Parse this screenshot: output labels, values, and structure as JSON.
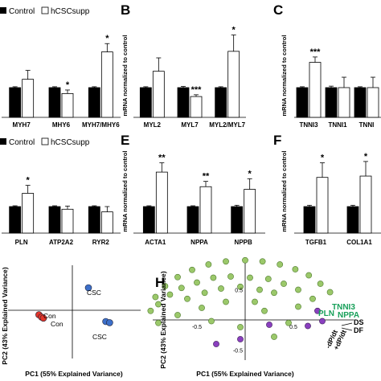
{
  "figure": {
    "background": "#ffffff",
    "accent_green": "#18a05a"
  },
  "legend": {
    "control_label": "Control",
    "treatment_label": "hCSCsupp",
    "control_color": "#000000",
    "treatment_color": "#ffffff"
  },
  "shared_ylabel": "mRNA normalized to control",
  "chart_data": [
    {
      "panel": "",
      "type": "bar",
      "categories": [
        "MYH7",
        "MHY6",
        "MYH7/MHY6"
      ],
      "series": [
        {
          "name": "Control",
          "values": [
            1.0,
            1.0,
            1.0
          ],
          "errors": [
            0.03,
            0.03,
            0.03
          ]
        },
        {
          "name": "hCSCsupp",
          "values": [
            1.28,
            0.8,
            2.2
          ],
          "errors": [
            0.3,
            0.12,
            0.28
          ]
        }
      ],
      "significance": [
        "",
        "*",
        "*"
      ],
      "ylim": [
        0,
        3
      ]
    },
    {
      "panel": "B",
      "type": "bar",
      "categories": [
        "MYL2",
        "MYL7",
        "MYL2/MYL7"
      ],
      "ylabel": "mRNA normalized to control",
      "series": [
        {
          "name": "Control",
          "values": [
            1.0,
            1.0,
            1.0
          ],
          "errors": [
            0.03,
            0.04,
            0.03
          ]
        },
        {
          "name": "hCSCsupp",
          "values": [
            1.55,
            0.7,
            2.22
          ],
          "errors": [
            0.45,
            0.06,
            0.55
          ]
        }
      ],
      "significance": [
        "",
        "***",
        "*"
      ],
      "ylim": [
        0,
        3
      ]
    },
    {
      "panel": "C",
      "type": "bar",
      "categories": [
        "TNNI3",
        "TNNI1",
        "TNNI"
      ],
      "ylabel": "mRNA normalized to control",
      "series": [
        {
          "name": "Control",
          "values": [
            1.0,
            1.0,
            1.0
          ],
          "errors": [
            0.03,
            0.05,
            0.03
          ]
        },
        {
          "name": "hCSCsupp",
          "values": [
            1.85,
            1.0,
            1.0
          ],
          "errors": [
            0.18,
            0.35,
            0.35
          ]
        }
      ],
      "significance": [
        "***",
        "",
        ""
      ],
      "ylim": [
        0,
        3
      ]
    },
    {
      "panel": "",
      "type": "bar",
      "categories": [
        "PLN",
        "ATP2A2",
        "RYR2"
      ],
      "series": [
        {
          "name": "Control",
          "values": [
            1.0,
            1.0,
            1.0
          ],
          "errors": [
            0.03,
            0.03,
            0.03
          ]
        },
        {
          "name": "hCSCsupp",
          "values": [
            1.5,
            0.9,
            0.8
          ],
          "errors": [
            0.3,
            0.12,
            0.2
          ]
        }
      ],
      "significance": [
        "*",
        "",
        ""
      ],
      "ylim": [
        0,
        3
      ]
    },
    {
      "panel": "E",
      "type": "bar",
      "categories": [
        "ACTA1",
        "NPPA",
        "NPPB"
      ],
      "ylabel": "mRNA normalized to control",
      "series": [
        {
          "name": "Control",
          "values": [
            1.0,
            1.0,
            1.0
          ],
          "errors": [
            0.03,
            0.03,
            0.05
          ]
        },
        {
          "name": "hCSCsupp",
          "values": [
            2.3,
            1.75,
            1.65
          ],
          "errors": [
            0.35,
            0.2,
            0.4
          ]
        }
      ],
      "significance": [
        "**",
        "**",
        "*"
      ],
      "ylim": [
        0,
        3
      ]
    },
    {
      "panel": "F",
      "type": "bar",
      "categories": [
        "TGFB1",
        "COL1A1"
      ],
      "ylabel": "mRNA normalized to control",
      "series": [
        {
          "name": "Control",
          "values": [
            1.0,
            1.0
          ],
          "errors": [
            0.05,
            0.05
          ]
        },
        {
          "name": "hCSCsupp",
          "values": [
            2.1,
            2.15
          ],
          "errors": [
            0.55,
            0.55
          ]
        }
      ],
      "significance": [
        "*",
        "*"
      ],
      "ylim": [
        0,
        3
      ]
    },
    {
      "panel": "",
      "type": "scatter",
      "xlabel": "PC1 (55% Explained Variance)",
      "ylabel": "PC2 (43% Explained Variance)",
      "xlim": [
        -1,
        1
      ],
      "ylim": [
        -1,
        1
      ],
      "points": [
        {
          "label": "CSC",
          "x": 0.25,
          "y": 0.4,
          "color": "#3c6fc9"
        },
        {
          "label": "CSC",
          "x": 0.52,
          "y": -0.2,
          "color": "#3c6fc9"
        },
        {
          "label": "",
          "x": 0.58,
          "y": -0.22,
          "color": "#3c6fc9"
        },
        {
          "label": "Con",
          "x": -0.52,
          "y": -0.08,
          "color": "#e3352a"
        },
        {
          "label": "",
          "x": -0.48,
          "y": -0.12,
          "color": "#e3352a"
        },
        {
          "label": "Con",
          "x": -0.45,
          "y": -0.14,
          "color": "#e3352a"
        }
      ],
      "point_labels": [
        "CSC",
        "CSC",
        "Con",
        "Con"
      ]
    },
    {
      "panel": "H",
      "type": "scatter",
      "xlabel": "PC1 (55% Explained Variance)",
      "ylabel": "PC2 (43% Explained Variance)",
      "xlim": [
        -1.1,
        1.1
      ],
      "ylim": [
        -1.1,
        1.1
      ],
      "ticks_x": [
        "-0.5",
        "0.5"
      ],
      "ticks_y": [
        "-0.5",
        "0.5"
      ],
      "green_points": [
        [
          -0.98,
          0.15
        ],
        [
          -0.93,
          0.38
        ],
        [
          -0.83,
          0.56
        ],
        [
          -0.7,
          0.71
        ],
        [
          -0.55,
          0.83
        ],
        [
          -0.38,
          0.92
        ],
        [
          -0.2,
          0.97
        ],
        [
          0.0,
          0.99
        ],
        [
          0.18,
          0.97
        ],
        [
          0.36,
          0.92
        ],
        [
          0.52,
          0.84
        ],
        [
          0.66,
          0.74
        ],
        [
          0.78,
          0.6
        ],
        [
          0.88,
          0.46
        ],
        [
          -0.78,
          0.42
        ],
        [
          -0.66,
          0.53
        ],
        [
          -0.5,
          0.62
        ],
        [
          -0.33,
          0.7
        ],
        [
          -0.15,
          0.72
        ],
        [
          0.05,
          0.7
        ],
        [
          0.24,
          0.68
        ],
        [
          0.4,
          0.6
        ],
        [
          0.55,
          0.5
        ],
        [
          -0.9,
          0.26
        ],
        [
          -0.6,
          0.35
        ],
        [
          -0.42,
          0.45
        ],
        [
          -0.25,
          0.52
        ],
        [
          -0.05,
          0.55
        ],
        [
          0.15,
          0.5
        ],
        [
          0.3,
          0.45
        ],
        [
          0.7,
          0.35
        ],
        [
          -0.7,
          0.08
        ],
        [
          -0.45,
          0.2
        ],
        [
          -0.2,
          0.3
        ],
        [
          0.1,
          0.3
        ],
        [
          0.55,
          0.22
        ],
        [
          0.2,
          0.15
        ],
        [
          -0.9,
          -0.05
        ],
        [
          0.45,
          -0.05
        ],
        [
          -0.05,
          -0.12
        ],
        [
          0.3,
          -0.28
        ],
        [
          -0.35,
          -0.02
        ]
      ],
      "purple_points": [
        [
          0.75,
          0.15
        ],
        [
          0.8,
          -0.02
        ],
        [
          0.65,
          -0.1
        ],
        [
          -0.05,
          -0.32
        ],
        [
          -0.3,
          -0.4
        ],
        [
          0.25,
          -0.08
        ]
      ],
      "labels": {
        "green": [
          "TNNI3",
          "PLN",
          "NPPA"
        ],
        "black": [
          "DS",
          "DF",
          "-dP/dt",
          "+dP/dt"
        ]
      }
    }
  ]
}
